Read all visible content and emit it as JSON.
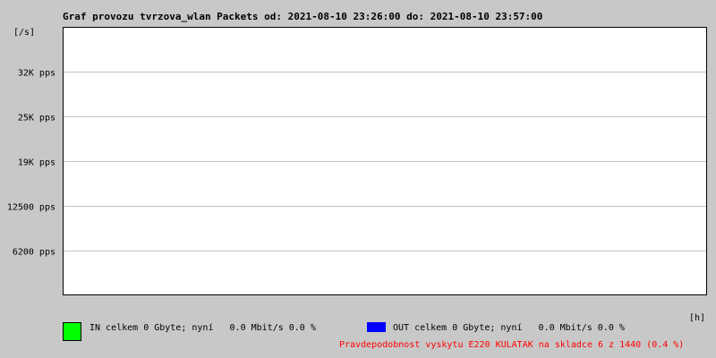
{
  "chart_data": {
    "type": "line",
    "title": "Graf provozu tvrzova_wlan Packets od: 2021-08-10 23:26:00 do: 2021-08-10 23:57:00",
    "ylabel": "[/s]",
    "xlabel": "[h]",
    "y_ticks": [
      "6200 pps",
      "12500 pps",
      "19K pps",
      "25K pps",
      "32K pps"
    ],
    "y_tick_values": [
      6200,
      12500,
      19000,
      25000,
      32000
    ],
    "grid": true,
    "series": [
      {
        "name": "IN",
        "color": "#00ff00",
        "values": []
      },
      {
        "name": "OUT",
        "color": "#0000ff",
        "values": []
      }
    ]
  },
  "legend": {
    "in_text": "IN celkem 0 Gbyte; nyní   0.0 Mbit/s 0.0 %",
    "out_text": "OUT celkem 0 Gbyte; nyní   0.0 Mbit/s 0.0 %"
  },
  "footer": {
    "note": "Pravdepodobnost vyskytu E220 KULATAK na skladce 6 z 1440 (0.4 %)",
    "note_color": "#ff0000"
  }
}
